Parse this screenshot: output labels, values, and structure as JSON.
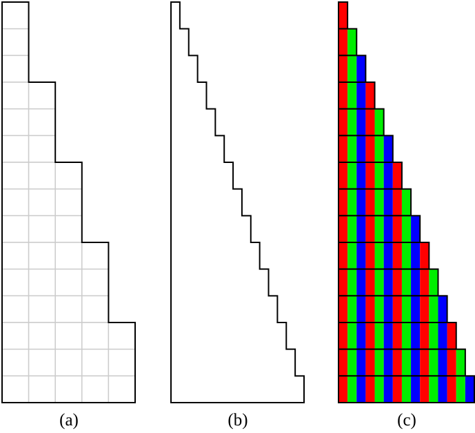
{
  "panels": [
    {
      "label": "(a)",
      "kind": "block-staircase-with-grid",
      "rows": 15,
      "columns": 5,
      "rows_per_step": 3
    },
    {
      "label": "(b)",
      "kind": "fine-staircase-outline",
      "rows": 15,
      "columns": 15
    },
    {
      "label": "(c)",
      "kind": "colored-staircase",
      "rows": 15,
      "columns": 15
    }
  ],
  "colors": {
    "outline": "#000000",
    "grid": "#cccccc",
    "cycle": [
      "#ff0000",
      "#00ee00",
      "#0000ff"
    ]
  }
}
